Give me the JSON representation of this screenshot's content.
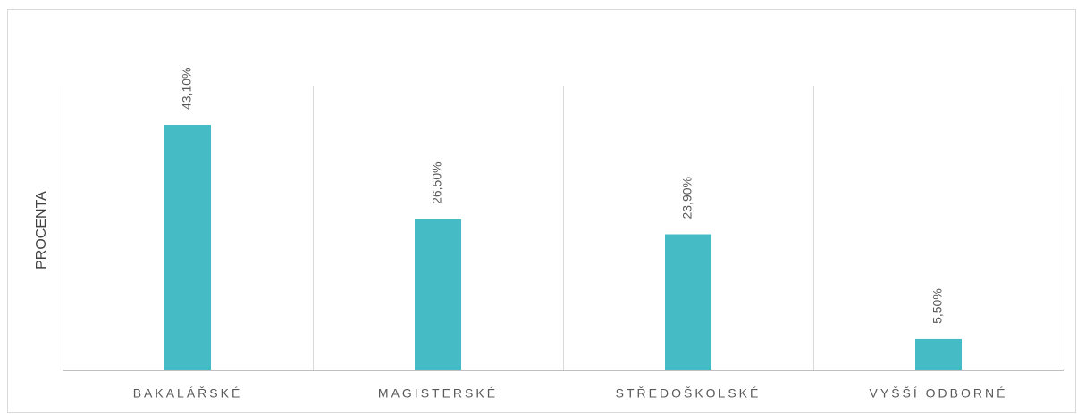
{
  "chart_data": {
    "type": "bar",
    "y_label": "PROCENTA",
    "categories": [
      "BAKALÁŘSKÉ",
      "MAGISTERSKÉ",
      "STŘEDOŠKOLSKÉ",
      "VYŠŠÍ ODBORNÉ"
    ],
    "values": [
      43.1,
      26.5,
      23.9,
      5.5
    ],
    "value_labels": [
      "43,10%",
      "26,50%",
      "23,90%",
      "5,50%"
    ],
    "color": "#45bcc5",
    "ylim": [
      0,
      50
    ],
    "grid": true
  }
}
